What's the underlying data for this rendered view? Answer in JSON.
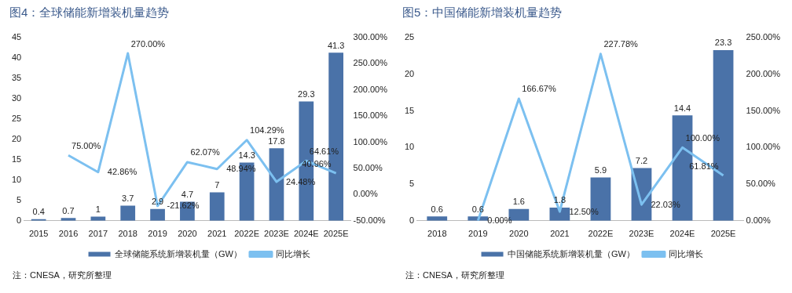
{
  "chart_data": [
    {
      "type": "bar",
      "title": "图4：全球储能新增装机量趋势",
      "categories": [
        "2015",
        "2016",
        "2017",
        "2018",
        "2019",
        "2020",
        "2021",
        "2022E",
        "2023E",
        "2024E",
        "2025E"
      ],
      "series": [
        {
          "name": "全球储能系统新增装机量（GW）",
          "color": "#4a72a8",
          "values": [
            0.4,
            0.7,
            1,
            3.7,
            2.9,
            4.7,
            7,
            14.3,
            17.8,
            29.3,
            41.3
          ],
          "data_labels": true
        },
        {
          "name": "同比增长",
          "type": "line",
          "axis": "y2",
          "color": "#7cc0f0",
          "values": [
            null,
            75.0,
            42.86,
            270.0,
            -21.62,
            62.07,
            48.94,
            104.29,
            24.48,
            64.61,
            40.96
          ],
          "value_labels": [
            null,
            "75.00%",
            "42.86%",
            "270.00%",
            "-21.62%",
            "62.07%",
            "48.94%",
            "104.29%",
            "24.48%",
            "64.61%",
            "40.96%"
          ]
        }
      ],
      "ylim": [
        0,
        45
      ],
      "yticks": [
        0,
        5,
        10,
        15,
        20,
        25,
        30,
        35,
        40,
        45
      ],
      "y2lim": [
        -50,
        300
      ],
      "y2ticks": [
        {
          "value": -50,
          "label": "-50.00%"
        },
        {
          "value": 0,
          "label": "0.00%"
        },
        {
          "value": 50,
          "label": "50.00%"
        },
        {
          "value": 100,
          "label": "100.00%"
        },
        {
          "value": 150,
          "label": "150.00%"
        },
        {
          "value": 200,
          "label": "200.00%"
        },
        {
          "value": 250,
          "label": "250.00%"
        },
        {
          "value": 300,
          "label": "300.00%"
        }
      ],
      "legend": "bottom",
      "marker": "none",
      "annotations": [
        "注：CNESA，研究所整理"
      ]
    },
    {
      "type": "bar",
      "title": "图5：中国储能新增装机量趋势",
      "categories": [
        "2018",
        "2019",
        "2020",
        "2021",
        "2022E",
        "2023E",
        "2024E",
        "2025E"
      ],
      "series": [
        {
          "name": "中国储能系统新增装机量（GW）",
          "color": "#4a72a8",
          "values": [
            0.6,
            0.6,
            1.6,
            1.8,
            5.9,
            7.2,
            14.4,
            23.3
          ],
          "data_labels": true
        },
        {
          "name": "同比增长",
          "type": "line",
          "axis": "y2",
          "color": "#7cc0f0",
          "values": [
            null,
            0.0,
            166.67,
            12.5,
            227.78,
            22.03,
            100.0,
            61.81
          ],
          "value_labels": [
            null,
            "0.00%",
            "166.67%",
            "12.50%",
            "227.78%",
            "22.03%",
            "100.00%",
            "61.81%"
          ]
        }
      ],
      "ylim": [
        0,
        25
      ],
      "yticks": [
        0,
        5,
        10,
        15,
        20,
        25
      ],
      "y2lim": [
        0,
        250
      ],
      "y2ticks": [
        {
          "value": 0,
          "label": "0.00%"
        },
        {
          "value": 50,
          "label": "50.00%"
        },
        {
          "value": 100,
          "label": "100.00%"
        },
        {
          "value": 150,
          "label": "150.00%"
        },
        {
          "value": 200,
          "label": "200.00%"
        },
        {
          "value": 250,
          "label": "250.00%"
        }
      ],
      "legend": "bottom",
      "marker": "none",
      "annotations": [
        "注：CNESA，研究所整理"
      ]
    }
  ]
}
